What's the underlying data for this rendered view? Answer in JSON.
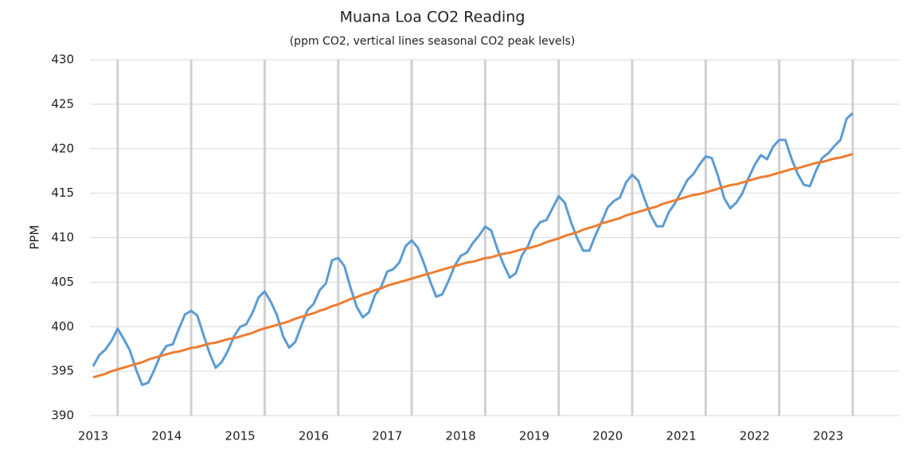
{
  "chart_data": {
    "type": "line",
    "title": "Muana Loa CO2 Reading",
    "subtitle": "(ppm CO2, vertical lines seasonal CO2 peak levels)",
    "y_label": "PPM",
    "categories": [
      "2013",
      null,
      null,
      null,
      null,
      null,
      null,
      null,
      null,
      null,
      null,
      null,
      "2014",
      null,
      null,
      null,
      null,
      null,
      null,
      null,
      null,
      null,
      null,
      null,
      "2015",
      null,
      null,
      null,
      null,
      null,
      null,
      null,
      null,
      null,
      null,
      null,
      "2016",
      null,
      null,
      null,
      null,
      null,
      null,
      null,
      null,
      null,
      null,
      null,
      "2017",
      null,
      null,
      null,
      null,
      null,
      null,
      null,
      null,
      null,
      null,
      null,
      "2018",
      null,
      null,
      null,
      null,
      null,
      null,
      null,
      null,
      null,
      null,
      null,
      "2019",
      null,
      null,
      null,
      null,
      null,
      null,
      null,
      null,
      null,
      null,
      null,
      "2020",
      null,
      null,
      null,
      null,
      null,
      null,
      null,
      null,
      null,
      null,
      null,
      "2021",
      null,
      null,
      null,
      null,
      null,
      null,
      null,
      null,
      null,
      null,
      null,
      "2022",
      null,
      null,
      null,
      null,
      null,
      null,
      null,
      null,
      null,
      null,
      null,
      "2023",
      null,
      null,
      null,
      null
    ],
    "series": [
      {
        "color": "#5b9bd5",
        "values": [
          395.55,
          396.8,
          397.43,
          398.41,
          399.78,
          398.6,
          397.32,
          395.2,
          393.45,
          393.7,
          395.16,
          396.84,
          397.85,
          398.01,
          399.77,
          401.38,
          401.78,
          401.25,
          399.1,
          397.03,
          395.38,
          396.03,
          397.28,
          398.91,
          399.98,
          400.28,
          401.54,
          403.28,
          403.96,
          402.8,
          401.31,
          398.93,
          397.63,
          398.29,
          400.16,
          401.85,
          402.56,
          404.12,
          404.87,
          407.45,
          407.72,
          406.83,
          404.41,
          402.27,
          401.05,
          401.59,
          403.55,
          404.45,
          406.17,
          406.46,
          407.22,
          409.04,
          409.69,
          408.88,
          407.12,
          405.13,
          403.37,
          403.63,
          405.12,
          406.81,
          407.96,
          408.32,
          409.41,
          410.24,
          411.24,
          410.79,
          408.71,
          406.99,
          405.51,
          406.0,
          408.02,
          409.07,
          410.83,
          411.75,
          411.97,
          413.32,
          414.66,
          413.92,
          411.77,
          409.95,
          408.54,
          408.53,
          410.27,
          411.76,
          413.4,
          414.11,
          414.51,
          416.21,
          417.07,
          416.38,
          414.38,
          412.55,
          411.29,
          411.28,
          412.89,
          413.89,
          415.15,
          416.47,
          417.16,
          418.24,
          419.13,
          418.94,
          416.96,
          414.47,
          413.3,
          413.93,
          415.01,
          416.71,
          418.19,
          419.28,
          418.81,
          420.23,
          420.99,
          420.99,
          418.9,
          417.19,
          415.95,
          415.78,
          417.51,
          418.95,
          419.47,
          420.31,
          420.99,
          423.36,
          424.0
        ]
      },
      {
        "color": "#ed7d31",
        "values": [
          394.3,
          394.5,
          394.7,
          395.0,
          395.2,
          395.4,
          395.6,
          395.8,
          396.0,
          396.3,
          396.5,
          396.7,
          396.9,
          397.1,
          397.2,
          397.4,
          397.6,
          397.7,
          397.9,
          398.1,
          398.2,
          398.4,
          398.6,
          398.7,
          398.9,
          399.1,
          399.3,
          399.6,
          399.8,
          400.0,
          400.2,
          400.4,
          400.6,
          400.9,
          401.1,
          401.3,
          401.5,
          401.8,
          402.0,
          402.3,
          402.5,
          402.8,
          403.1,
          403.3,
          403.6,
          403.8,
          404.1,
          404.3,
          404.6,
          404.8,
          405.0,
          405.2,
          405.4,
          405.6,
          405.8,
          406.0,
          406.2,
          406.4,
          406.6,
          406.8,
          407.0,
          407.2,
          407.3,
          407.5,
          407.7,
          407.8,
          408.0,
          408.2,
          408.3,
          408.5,
          408.7,
          408.8,
          409.0,
          409.2,
          409.5,
          409.7,
          409.9,
          410.2,
          410.4,
          410.6,
          410.9,
          411.1,
          411.3,
          411.6,
          411.8,
          412.0,
          412.2,
          412.5,
          412.7,
          412.9,
          413.1,
          413.3,
          413.5,
          413.8,
          414.0,
          414.2,
          414.4,
          414.6,
          414.8,
          414.9,
          415.1,
          415.3,
          415.5,
          415.7,
          415.9,
          416.0,
          416.2,
          416.4,
          416.6,
          416.8,
          416.9,
          417.1,
          417.3,
          417.5,
          417.7,
          417.8,
          418.0,
          418.2,
          418.4,
          418.5,
          418.7,
          418.9,
          419.0,
          419.2,
          419.4
        ]
      }
    ],
    "peak_lines": [
      4,
      16,
      28,
      40,
      52,
      64,
      76,
      88,
      100,
      112,
      124
    ],
    "ylim": [
      390,
      430
    ],
    "yticks": [
      390,
      395,
      400,
      405,
      410,
      415,
      420,
      425,
      430
    ],
    "grid": true
  }
}
